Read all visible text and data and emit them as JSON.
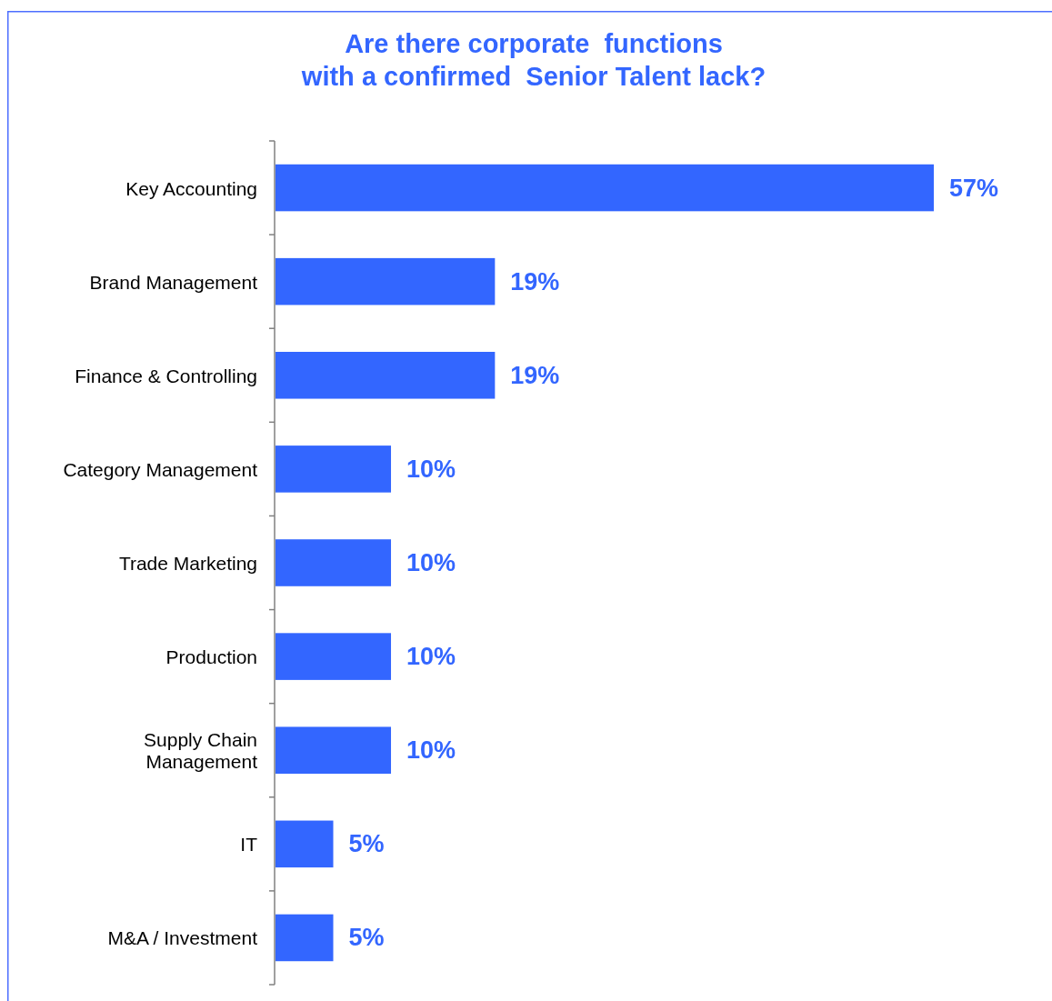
{
  "chart_data": {
    "type": "bar",
    "orientation": "horizontal",
    "title": "Are there corporate  functions\nwith a confirmed  Senior Talent lack?",
    "categories": [
      "Key Accounting",
      "Brand Management",
      "Finance & Controlling",
      "Category Management",
      "Trade Marketing",
      "Production",
      "Supply Chain Management",
      "IT",
      "M&A / Investment"
    ],
    "values": [
      57,
      19,
      19,
      10,
      10,
      10,
      10,
      5,
      5
    ],
    "value_labels": [
      "57%",
      "19%",
      "19%",
      "10%",
      "10%",
      "10%",
      "10%",
      "5%",
      "5%"
    ],
    "color": "#3366ff"
  }
}
